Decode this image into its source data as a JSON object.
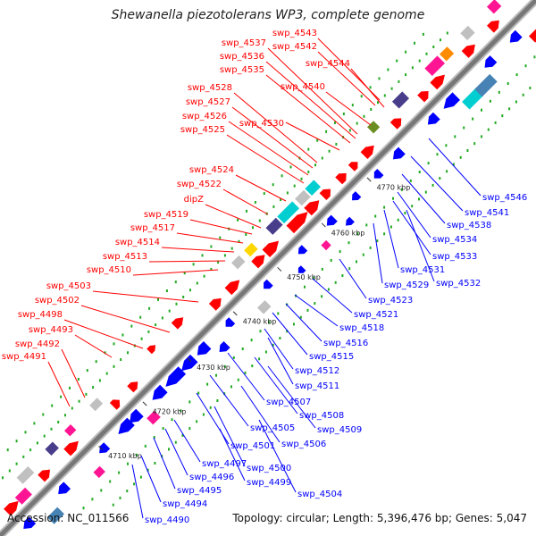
{
  "title": "Shewanella piezotolerans WP3, complete genome",
  "footer": {
    "accession": "Accession: NC_011566",
    "topology": "Topology: circular; Length: 5,396,476 bp; Genes: 5,047"
  },
  "colors": {
    "forward": "#ff0000",
    "reverse": "#0000ff",
    "backbone": "#888888",
    "cog_dot": "#22aa22"
  },
  "ticks": [
    "4710 kbp",
    "4720 kbp",
    "4730 kbp",
    "4740 kbp",
    "4750 kbp",
    "4760 kbp",
    "4770 kbp"
  ],
  "forward_labels": [
    "swp_4543",
    "swp_4542",
    "swp_4537",
    "swp_4536",
    "swp_4544",
    "swp_4535",
    "swp_4540",
    "swp_4528",
    "swp_4527",
    "swp_4530",
    "swp_4526",
    "swp_4525",
    "swp_4524",
    "swp_4522",
    "dipZ",
    "swp_4519",
    "swp_4517",
    "swp_4514",
    "swp_4513",
    "swp_4510",
    "swp_4503",
    "swp_4502",
    "swp_4498",
    "swp_4493",
    "swp_4492",
    "swp_4491"
  ],
  "reverse_labels": [
    "swp_4546",
    "swp_4541",
    "swp_4538",
    "swp_4534",
    "swp_4533",
    "swp_4531",
    "swp_4532",
    "swp_4529",
    "swp_4523",
    "swp_4521",
    "swp_4518",
    "swp_4516",
    "swp_4515",
    "swp_4512",
    "swp_4511",
    "swp_4507",
    "swp_4508",
    "swp_4509",
    "swp_4505",
    "swp_4506",
    "swp_4501",
    "swp_4497",
    "swp_4500",
    "swp_4496",
    "swp_4499",
    "swp_4495",
    "swp_4504",
    "swp_4494",
    "swp_4490"
  ]
}
